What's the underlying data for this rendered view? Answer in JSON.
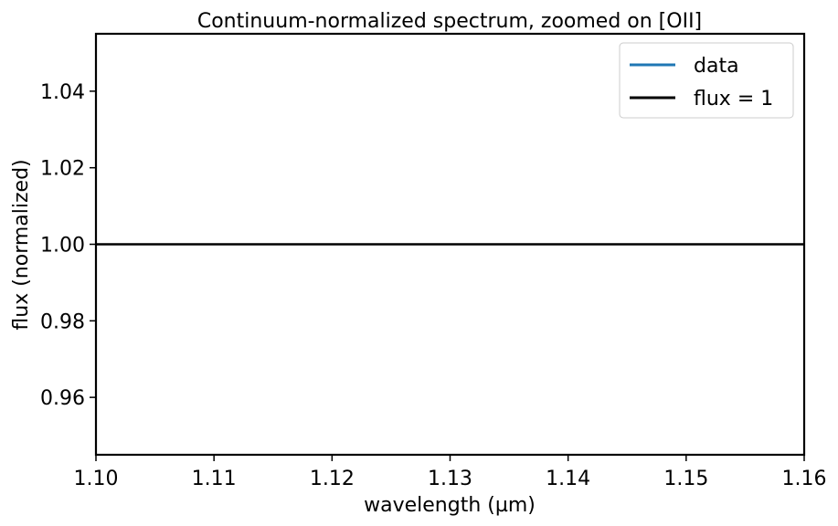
{
  "chart_data": {
    "type": "line",
    "title": "Continuum-normalized spectrum, zoomed on [OII]",
    "xlabel": "wavelength (µm)",
    "ylabel": "flux (normalized)",
    "xlim": [
      1.1,
      1.16
    ],
    "ylim": [
      0.945,
      1.055
    ],
    "xticks": [
      1.1,
      1.11,
      1.12,
      1.13,
      1.14,
      1.15,
      1.16
    ],
    "xtick_labels": [
      "1.10",
      "1.11",
      "1.12",
      "1.13",
      "1.14",
      "1.15",
      "1.16"
    ],
    "yticks": [
      0.96,
      0.98,
      1.0,
      1.02,
      1.04
    ],
    "ytick_labels": [
      "0.96",
      "0.98",
      "1.00",
      "1.02",
      "1.04"
    ],
    "grid": false,
    "legend_position": "top-right",
    "series": [
      {
        "name": "data",
        "color": "#1f77b4",
        "x": [],
        "y": []
      },
      {
        "name": "flux = 1",
        "color": "#000000",
        "x": [
          1.1,
          1.16
        ],
        "y": [
          1.0,
          1.0
        ]
      }
    ]
  }
}
